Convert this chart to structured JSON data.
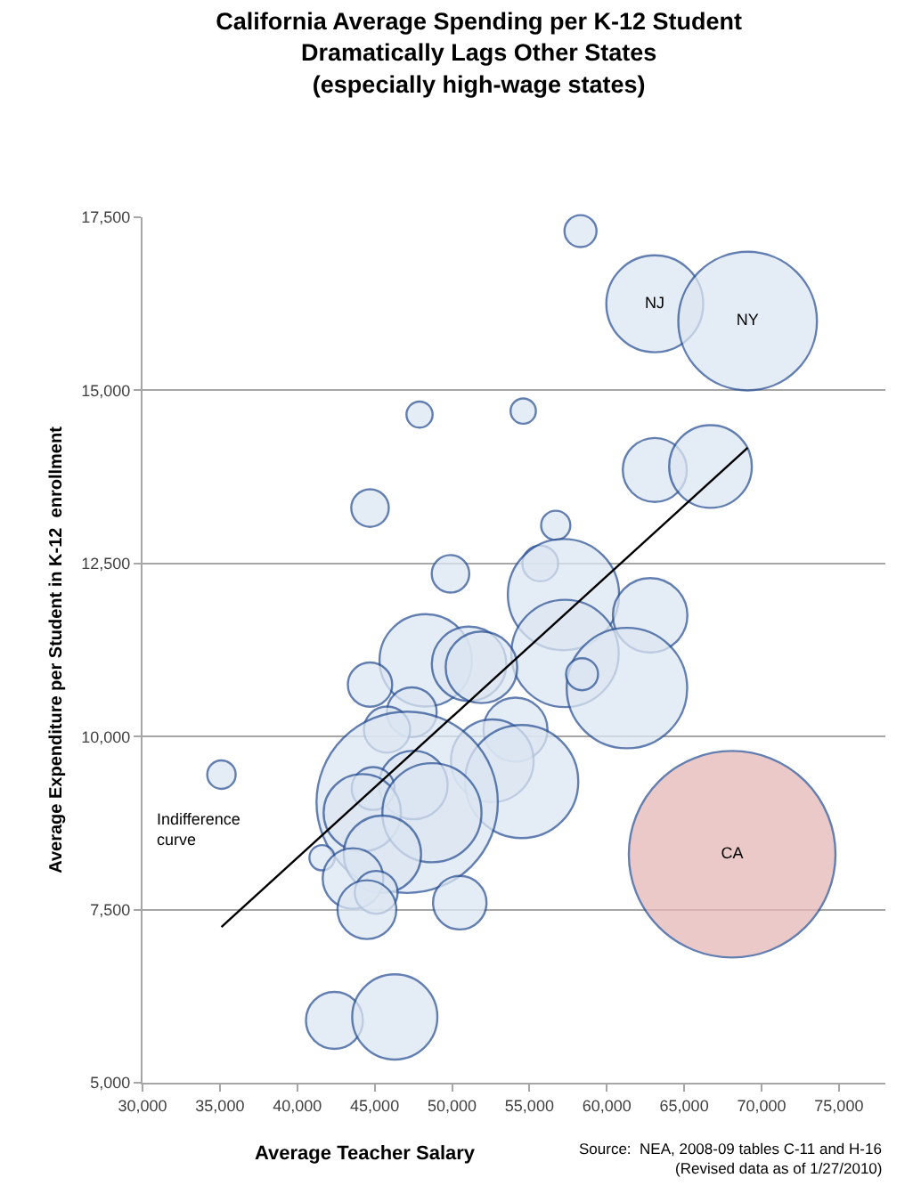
{
  "chart_data": {
    "type": "bubble",
    "title": "California Average Spending per K-12 Student\nDramatically Lags Other States\n(especially high-wage states)",
    "xlabel": "Average Teacher Salary",
    "ylabel": "Average Expenditure per Student in K-12  enrollment",
    "xlim": [
      30000,
      78000
    ],
    "xticks": [
      {
        "value": 30000,
        "label": "30,000"
      },
      {
        "value": 35000,
        "label": "35,000"
      },
      {
        "value": 40000,
        "label": "40,000"
      },
      {
        "value": 45000,
        "label": "45,000"
      },
      {
        "value": 50000,
        "label": "50,000"
      },
      {
        "value": 55000,
        "label": "55,000"
      },
      {
        "value": 60000,
        "label": "60,000"
      },
      {
        "value": 65000,
        "label": "65,000"
      },
      {
        "value": 70000,
        "label": "70,000"
      },
      {
        "value": 75000,
        "label": "75,000"
      }
    ],
    "ylim": [
      5000,
      17500
    ],
    "yticks": [
      {
        "value": 5000,
        "label": "5,000"
      },
      {
        "value": 7500,
        "label": "7,500"
      },
      {
        "value": 10000,
        "label": "10,000"
      },
      {
        "value": 12500,
        "label": "12,500"
      },
      {
        "value": 15000,
        "label": "15,000"
      },
      {
        "value": 17500,
        "label": "17,500"
      }
    ],
    "grid": "y",
    "series": [
      {
        "x": [
          58300,
          63100,
          69100,
          47900,
          54600,
          63100,
          66700,
          44700,
          56700,
          55700,
          49900,
          57200,
          57300,
          62800,
          61300,
          58400,
          48300,
          51100,
          51900,
          44700,
          47400,
          45800,
          54100,
          52600,
          54500,
          35100,
          47100,
          47500,
          44900,
          44200,
          48700,
          45500,
          41600,
          43600,
          45100,
          44500,
          50500,
          42400,
          46300,
          68100
        ],
        "values": [
          17300,
          16250,
          16000,
          14650,
          14700,
          13850,
          13900,
          13300,
          13050,
          12500,
          12350,
          12050,
          11200,
          11750,
          10700,
          10900,
          11100,
          11050,
          11000,
          10750,
          10350,
          10100,
          10100,
          9650,
          9350,
          9450,
          9050,
          9300,
          9250,
          8900,
          8900,
          8300,
          8250,
          7950,
          7750,
          7500,
          7600,
          5900,
          5950,
          8300
        ],
        "sizes": [
          0.024,
          0.22,
          0.45,
          0.016,
          0.015,
          0.096,
          0.16,
          0.033,
          0.02,
          0.03,
          0.033,
          0.29,
          0.27,
          0.13,
          0.34,
          0.024,
          0.2,
          0.13,
          0.12,
          0.046,
          0.058,
          0.05,
          0.096,
          0.16,
          0.3,
          0.019,
          0.77,
          0.11,
          0.043,
          0.14,
          0.23,
          0.14,
          0.015,
          0.086,
          0.043,
          0.081,
          0.067,
          0.076,
          0.17,
          1
        ],
        "colors": [
          "#dce6f2",
          "#dce6f2",
          "#dce6f2",
          "#dce6f2",
          "#dce6f2",
          "#dce6f2",
          "#dce6f2",
          "#dce6f2",
          "#dce6f2",
          "#dce6f2",
          "#dce6f2",
          "#dce6f2",
          "#dce6f2",
          "#dce6f2",
          "#dce6f2",
          "#dce6f2",
          "#dce6f2",
          "#dce6f2",
          "#dce6f2",
          "#dce6f2",
          "#dce6f2",
          "#dce6f2",
          "#dce6f2",
          "#dce6f2",
          "#dce6f2",
          "#dce6f2",
          "#dce6f2",
          "#dce6f2",
          "#dce6f2",
          "#dce6f2",
          "#dce6f2",
          "#dce6f2",
          "#dce6f2",
          "#dce6f2",
          "#dce6f2",
          "#dce6f2",
          "#dce6f2",
          "#dce6f2",
          "#dce6f2",
          "#e6b8b7"
        ],
        "value_labels": [
          null,
          "NJ",
          "NY",
          null,
          null,
          null,
          null,
          null,
          null,
          null,
          null,
          null,
          null,
          null,
          null,
          null,
          null,
          null,
          null,
          null,
          null,
          null,
          null,
          null,
          null,
          null,
          null,
          null,
          null,
          null,
          null,
          null,
          null,
          null,
          null,
          null,
          null,
          null,
          null,
          "CA"
        ]
      },
      {
        "type": "line",
        "name": "Indifference curve",
        "color": "#000000",
        "x": [
          35100,
          69100
        ],
        "values": [
          7250,
          14170
        ]
      }
    ],
    "annotations": [
      "Source:  NEA, 2008-09 tables C-11 and H-16",
      "(Revised data as of 1/27/2010)"
    ]
  }
}
